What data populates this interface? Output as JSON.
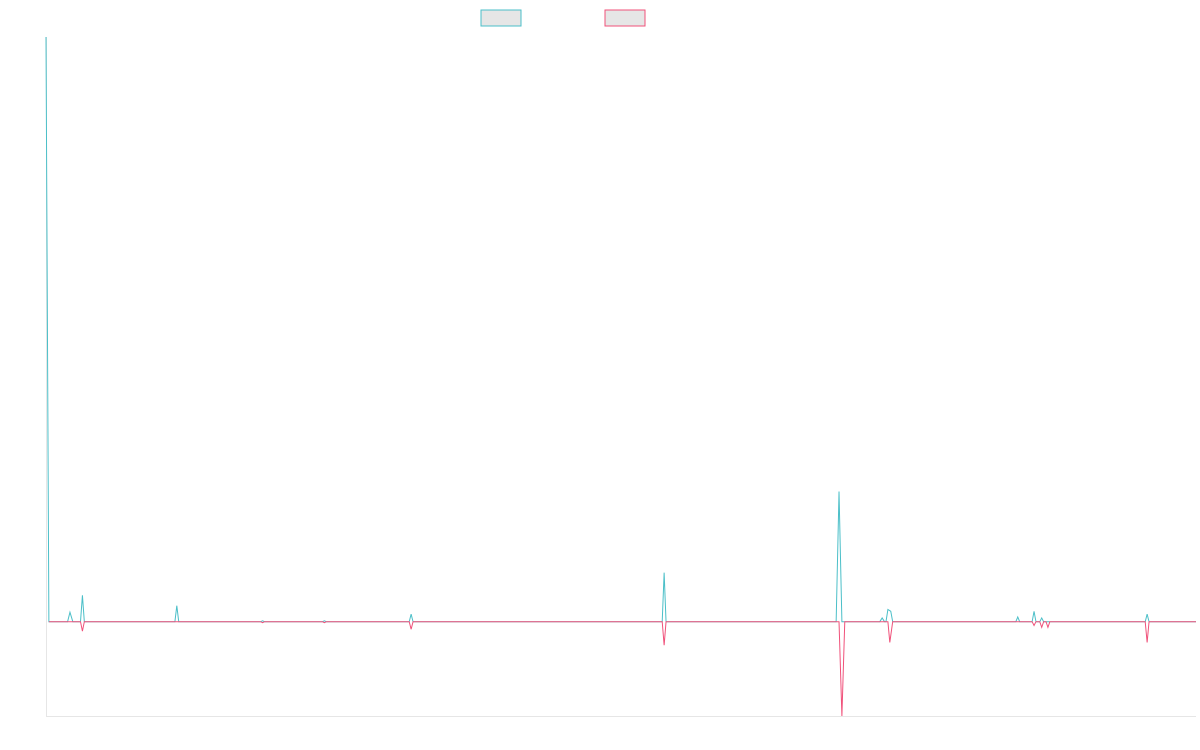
{
  "chart_data": {
    "type": "line",
    "title": "",
    "xlabel": "",
    "ylabel": "",
    "grid": false,
    "legend_placement": "top-center",
    "xlim": [
      0,
      240
    ],
    "ylim": [
      -100,
      620
    ],
    "series": [
      {
        "key": "s1",
        "color": "#4bbfc8",
        "values": [
          [
            0,
            620
          ],
          [
            0.6,
            0
          ],
          [
            4.5,
            0
          ],
          [
            5,
            10
          ],
          [
            5.6,
            0
          ],
          [
            7.2,
            0
          ],
          [
            7.6,
            28
          ],
          [
            8,
            0
          ],
          [
            26.9,
            0
          ],
          [
            27.3,
            17
          ],
          [
            27.7,
            0
          ],
          [
            44.8,
            0
          ],
          [
            45.2,
            1
          ],
          [
            45.6,
            0
          ],
          [
            57.7,
            0
          ],
          [
            58.1,
            1
          ],
          [
            58.5,
            0
          ],
          [
            75.8,
            0
          ],
          [
            76.2,
            8
          ],
          [
            76.6,
            0
          ],
          [
            128.6,
            0
          ],
          [
            129,
            52
          ],
          [
            129.4,
            0
          ],
          [
            164.9,
            0
          ],
          [
            165.5,
            138
          ],
          [
            166.1,
            0
          ],
          [
            174,
            0
          ],
          [
            174.5,
            4
          ],
          [
            175,
            0
          ],
          [
            175.3,
            0
          ],
          [
            175.7,
            13
          ],
          [
            176.3,
            11
          ],
          [
            176.7,
            0
          ],
          [
            202.4,
            0
          ],
          [
            202.8,
            5
          ],
          [
            203.2,
            0
          ],
          [
            205.8,
            0
          ],
          [
            206.2,
            11
          ],
          [
            206.6,
            0
          ],
          [
            207.4,
            0
          ],
          [
            207.8,
            4
          ],
          [
            208.2,
            0
          ],
          [
            229.4,
            0
          ],
          [
            229.8,
            8
          ],
          [
            230.2,
            0
          ],
          [
            240,
            0
          ]
        ]
      },
      {
        "key": "s2",
        "color": "#f0517a",
        "values": [
          [
            0.6,
            0
          ],
          [
            7.2,
            0
          ],
          [
            7.6,
            -10
          ],
          [
            8,
            0
          ],
          [
            44.8,
            0
          ],
          [
            45.2,
            -1
          ],
          [
            45.6,
            0
          ],
          [
            57.7,
            0
          ],
          [
            58.1,
            -1
          ],
          [
            58.5,
            0
          ],
          [
            75.8,
            0
          ],
          [
            76.2,
            -8
          ],
          [
            76.6,
            0
          ],
          [
            128.6,
            0
          ],
          [
            129,
            -25
          ],
          [
            129.4,
            0
          ],
          [
            165.5,
            0
          ],
          [
            166.1,
            -100
          ],
          [
            166.7,
            0
          ],
          [
            175.7,
            0
          ],
          [
            176.1,
            -22
          ],
          [
            176.7,
            0
          ],
          [
            205.8,
            0
          ],
          [
            206.2,
            -4
          ],
          [
            206.6,
            0
          ],
          [
            207.4,
            0
          ],
          [
            207.8,
            -6
          ],
          [
            208.2,
            0
          ],
          [
            208.7,
            0
          ],
          [
            209.1,
            -6
          ],
          [
            209.5,
            0
          ],
          [
            229.4,
            0
          ],
          [
            229.8,
            -22
          ],
          [
            230.2,
            0
          ],
          [
            240,
            0
          ]
        ]
      }
    ]
  }
}
